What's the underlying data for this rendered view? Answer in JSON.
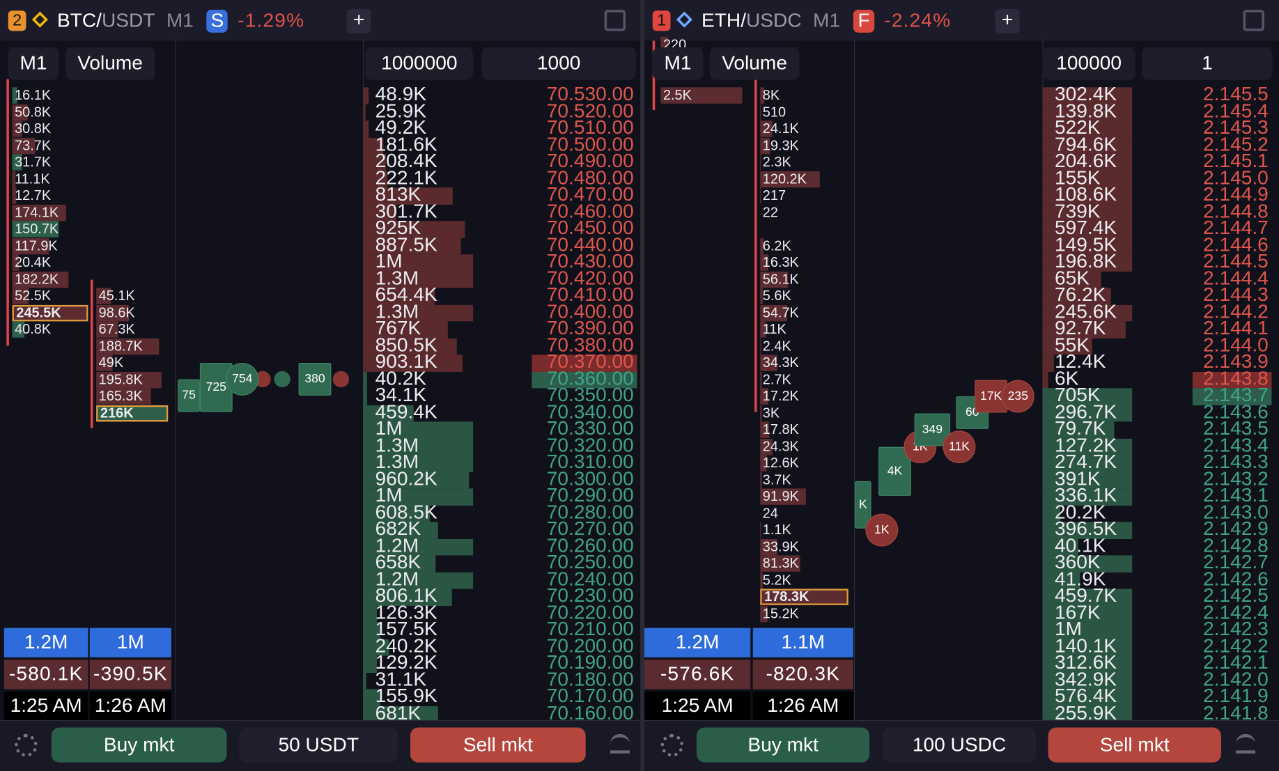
{
  "panels": [
    {
      "header": {
        "badge": "2",
        "symbol": "BTC/",
        "quote": "USDT",
        "timeframe": "M1",
        "exchange": "S",
        "change": "-1.29%",
        "add": "+"
      },
      "controls": {
        "mode": "M1",
        "metric": "Volume",
        "filter_volume": "1000000",
        "filter_step": "1000"
      },
      "clusters": [
        {
          "cells": [
            {
              "v": "16.1K",
              "side": "buy"
            },
            {
              "v": "50.8K",
              "side": "sell"
            },
            {
              "v": "30.8K",
              "side": "sell"
            },
            {
              "v": "73.7K",
              "side": "sell"
            },
            {
              "v": "31.7K",
              "side": "buy"
            },
            {
              "v": "11.1K",
              "side": "sell"
            },
            {
              "v": "12.7K",
              "side": "sell"
            },
            {
              "v": "174.1K",
              "side": "sell"
            },
            {
              "v": "150.7K",
              "side": "buy"
            },
            {
              "v": "117.9K",
              "side": "sell"
            },
            {
              "v": "20.4K",
              "side": "sell"
            },
            {
              "v": "182.2K",
              "side": "sell"
            },
            {
              "v": "52.5K",
              "side": "sell"
            },
            {
              "v": "245.5K",
              "side": "sell",
              "highlight": true
            },
            {
              "v": "40.8K",
              "side": "buy"
            }
          ]
        },
        {
          "cells": [
            {
              "v": "45.1K",
              "side": "sell"
            },
            {
              "v": "98.6K",
              "side": "sell"
            },
            {
              "v": "67.3K",
              "side": "sell"
            },
            {
              "v": "188.7K",
              "side": "sell"
            },
            {
              "v": "49K",
              "side": "sell"
            },
            {
              "v": "195.8K",
              "side": "sell"
            },
            {
              "v": "165.3K",
              "side": "sell"
            },
            {
              "v": "216K",
              "side": "buy",
              "highlight": true
            }
          ]
        }
      ],
      "bubbles": [
        {
          "label": "75",
          "side": "buy"
        },
        {
          "label": "725",
          "side": "buy"
        },
        {
          "label": "754",
          "side": "buy"
        },
        {
          "label": "380",
          "side": "buy"
        }
      ],
      "book": {
        "asks": [
          {
            "volume": "48.9K",
            "price": "70.530.00"
          },
          {
            "volume": "25.9K",
            "price": "70.520.00"
          },
          {
            "volume": "49.2K",
            "price": "70.510.00"
          },
          {
            "volume": "181.6K",
            "price": "70.500.00"
          },
          {
            "volume": "208.4K",
            "price": "70.490.00"
          },
          {
            "volume": "222.1K",
            "price": "70.480.00"
          },
          {
            "volume": "813K",
            "price": "70.470.00"
          },
          {
            "volume": "301.7K",
            "price": "70.460.00"
          },
          {
            "volume": "925K",
            "price": "70.450.00"
          },
          {
            "volume": "887.5K",
            "price": "70.440.00"
          },
          {
            "volume": "1M",
            "price": "70.430.00"
          },
          {
            "volume": "1.3M",
            "price": "70.420.00"
          },
          {
            "volume": "654.4K",
            "price": "70.410.00"
          },
          {
            "volume": "1.3M",
            "price": "70.400.00"
          },
          {
            "volume": "767K",
            "price": "70.390.00"
          },
          {
            "volume": "850.5K",
            "price": "70.380.00"
          },
          {
            "volume": "903.1K",
            "price": "70.370.00"
          }
        ],
        "bids": [
          {
            "volume": "40.2K",
            "price": "70.360.00"
          },
          {
            "volume": "34.1K",
            "price": "70.350.00"
          },
          {
            "volume": "459.4K",
            "price": "70.340.00"
          },
          {
            "volume": "1M",
            "price": "70.330.00"
          },
          {
            "volume": "1.3M",
            "price": "70.320.00"
          },
          {
            "volume": "1.3M",
            "price": "70.310.00"
          },
          {
            "volume": "960.2K",
            "price": "70.300.00"
          },
          {
            "volume": "1M",
            "price": "70.290.00"
          },
          {
            "volume": "608.5K",
            "price": "70.280.00"
          },
          {
            "volume": "682K",
            "price": "70.270.00"
          },
          {
            "volume": "1.2M",
            "price": "70.260.00"
          },
          {
            "volume": "658K",
            "price": "70.250.00"
          },
          {
            "volume": "1.2M",
            "price": "70.240.00"
          },
          {
            "volume": "806.1K",
            "price": "70.230.00"
          },
          {
            "volume": "126.3K",
            "price": "70.220.00"
          },
          {
            "volume": "157.5K",
            "price": "70.210.00"
          },
          {
            "volume": "240.2K",
            "price": "70.200.00"
          },
          {
            "volume": "129.2K",
            "price": "70.190.00"
          },
          {
            "volume": "31.1K",
            "price": "70.180.00"
          },
          {
            "volume": "155.9K",
            "price": "70.170.00"
          },
          {
            "volume": "681K",
            "price": "70.160.00"
          }
        ]
      },
      "footer": {
        "totals": [
          "1.2M",
          "1M"
        ],
        "deltas": [
          "-580.1K",
          "-390.5K"
        ],
        "times": [
          "1:25 AM",
          "1:26 AM"
        ]
      },
      "trade": {
        "buy": "Buy mkt",
        "amount": "50 USDT",
        "sell": "Sell mkt"
      }
    },
    {
      "header": {
        "badge": "1",
        "symbol": "ETH/",
        "quote": "USDC",
        "timeframe": "M1",
        "exchange": "F",
        "change": "-2.24%",
        "add": "+"
      },
      "controls": {
        "mode": "M1",
        "metric": "Volume",
        "filter_volume": "100000",
        "filter_step": "1"
      },
      "clusters": [
        {
          "cells": [
            {
              "v": "220",
              "side": "sell"
            },
            null,
            null,
            {
              "v": "2.5K",
              "side": "sell"
            }
          ]
        },
        {
          "cells": [
            {
              "v": "8K",
              "side": "sell"
            },
            {
              "v": "510",
              "side": "sell"
            },
            {
              "v": "24.1K",
              "side": "sell"
            },
            {
              "v": "19.3K",
              "side": "sell"
            },
            {
              "v": "2.3K",
              "side": "sell"
            },
            {
              "v": "120.2K",
              "side": "sell"
            },
            {
              "v": "217",
              "side": "sell"
            },
            {
              "v": "22",
              "side": "sell"
            },
            null,
            {
              "v": "6.2K",
              "side": "sell"
            },
            {
              "v": "16.3K",
              "side": "sell"
            },
            {
              "v": "56.1K",
              "side": "sell"
            },
            {
              "v": "5.6K",
              "side": "sell"
            },
            {
              "v": "54.7K",
              "side": "sell"
            },
            {
              "v": "11K",
              "side": "sell"
            },
            {
              "v": "2.4K",
              "side": "sell"
            },
            {
              "v": "34.3K",
              "side": "sell"
            },
            {
              "v": "2.7K",
              "side": "sell"
            },
            {
              "v": "17.2K",
              "side": "sell"
            },
            {
              "v": "3K",
              "side": "sell"
            },
            {
              "v": "17.8K",
              "side": "sell"
            },
            {
              "v": "24.3K",
              "side": "sell"
            },
            {
              "v": "12.6K",
              "side": "sell"
            },
            {
              "v": "3.7K",
              "side": "sell"
            },
            {
              "v": "91.9K",
              "side": "sell"
            },
            {
              "v": "24",
              "side": "sell"
            },
            {
              "v": "1.1K",
              "side": "sell"
            },
            {
              "v": "33.9K",
              "side": "sell"
            },
            {
              "v": "81.3K",
              "side": "sell"
            },
            {
              "v": "5.2K",
              "side": "sell"
            },
            {
              "v": "178.3K",
              "side": "sell",
              "highlight": true
            },
            {
              "v": "15.2K",
              "side": "sell"
            }
          ]
        }
      ],
      "bubbles": [
        {
          "label": "K",
          "side": "buy"
        },
        {
          "label": "1K",
          "side": "sell"
        },
        {
          "label": "4K",
          "side": "buy"
        },
        {
          "label": "1K",
          "side": "sell"
        },
        {
          "label": "349",
          "side": "buy"
        },
        {
          "label": "11K",
          "side": "sell"
        },
        {
          "label": "60",
          "side": "buy"
        },
        {
          "label": "17K",
          "side": "sell"
        },
        {
          "label": "235",
          "side": "sell"
        }
      ],
      "book": {
        "asks": [
          {
            "volume": "302.4K",
            "price": "2.145.5"
          },
          {
            "volume": "139.8K",
            "price": "2.145.4"
          },
          {
            "volume": "522K",
            "price": "2.145.3"
          },
          {
            "volume": "794.6K",
            "price": "2.145.2"
          },
          {
            "volume": "204.6K",
            "price": "2.145.1"
          },
          {
            "volume": "155K",
            "price": "2.145.0"
          },
          {
            "volume": "108.6K",
            "price": "2.144.9"
          },
          {
            "volume": "739K",
            "price": "2.144.8"
          },
          {
            "volume": "597.4K",
            "price": "2.144.7"
          },
          {
            "volume": "149.5K",
            "price": "2.144.6"
          },
          {
            "volume": "196.8K",
            "price": "2.144.5"
          },
          {
            "volume": "65K",
            "price": "2.144.4"
          },
          {
            "volume": "76.2K",
            "price": "2.144.3"
          },
          {
            "volume": "245.6K",
            "price": "2.144.2"
          },
          {
            "volume": "92.7K",
            "price": "2.144.1"
          },
          {
            "volume": "55K",
            "price": "2.144.0"
          },
          {
            "volume": "12.4K",
            "price": "2.143.9"
          },
          {
            "volume": "6K",
            "price": "2.143.8"
          }
        ],
        "bids": [
          {
            "volume": "705K",
            "price": "2.143.7"
          },
          {
            "volume": "296.7K",
            "price": "2.143.6"
          },
          {
            "volume": "79.7K",
            "price": "2.143.5"
          },
          {
            "volume": "127.2K",
            "price": "2.143.4"
          },
          {
            "volume": "274.7K",
            "price": "2.143.3"
          },
          {
            "volume": "391K",
            "price": "2.143.2"
          },
          {
            "volume": "336.1K",
            "price": "2.143.1"
          },
          {
            "volume": "20.2K",
            "price": "2.143.0"
          },
          {
            "volume": "396.5K",
            "price": "2.142.9"
          },
          {
            "volume": "40.1K",
            "price": "2.142.8"
          },
          {
            "volume": "360K",
            "price": "2.142.7"
          },
          {
            "volume": "41.9K",
            "price": "2.142.6"
          },
          {
            "volume": "459.7K",
            "price": "2.142.5"
          },
          {
            "volume": "167K",
            "price": "2.142.4"
          },
          {
            "volume": "1M",
            "price": "2.142.3"
          },
          {
            "volume": "140.1K",
            "price": "2.142.2"
          },
          {
            "volume": "312.6K",
            "price": "2.142.1"
          },
          {
            "volume": "342.9K",
            "price": "2.142.0"
          },
          {
            "volume": "576.4K",
            "price": "2.141.9"
          },
          {
            "volume": "255.9K",
            "price": "2.141.8"
          }
        ]
      },
      "footer": {
        "totals": [
          "1.2M",
          "1.1M"
        ],
        "deltas": [
          "-576.6K",
          "-820.3K"
        ],
        "times": [
          "1:25 AM",
          "1:26 AM"
        ]
      },
      "trade": {
        "buy": "Buy mkt",
        "amount": "100 USDC",
        "sell": "Sell mkt"
      }
    }
  ]
}
